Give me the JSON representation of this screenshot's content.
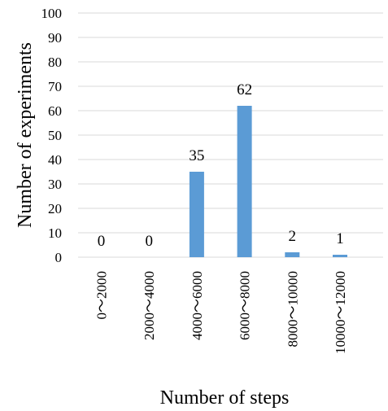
{
  "chart_data": {
    "type": "bar",
    "categories": [
      "0～2000",
      "2000～4000",
      "4000～6000",
      "6000～8000",
      "8000～10000",
      "10000～12000"
    ],
    "values": [
      0,
      0,
      35,
      62,
      2,
      1
    ],
    "data_labels": [
      "0",
      "0",
      "35",
      "62",
      "2",
      "1"
    ],
    "title": "",
    "xlabel": "Number of steps",
    "ylabel": "Number of experiments",
    "ylim": [
      0,
      100
    ],
    "yticks": [
      0,
      10,
      20,
      30,
      40,
      50,
      60,
      70,
      80,
      90,
      100
    ],
    "ytick_labels": [
      "0",
      "10",
      "20",
      "30",
      "40",
      "50",
      "60",
      "70",
      "80",
      "90",
      "100"
    ],
    "grid": true,
    "legend": "none",
    "bar_color": "#5b9bd5",
    "grid_color": "#d9d9d9"
  }
}
